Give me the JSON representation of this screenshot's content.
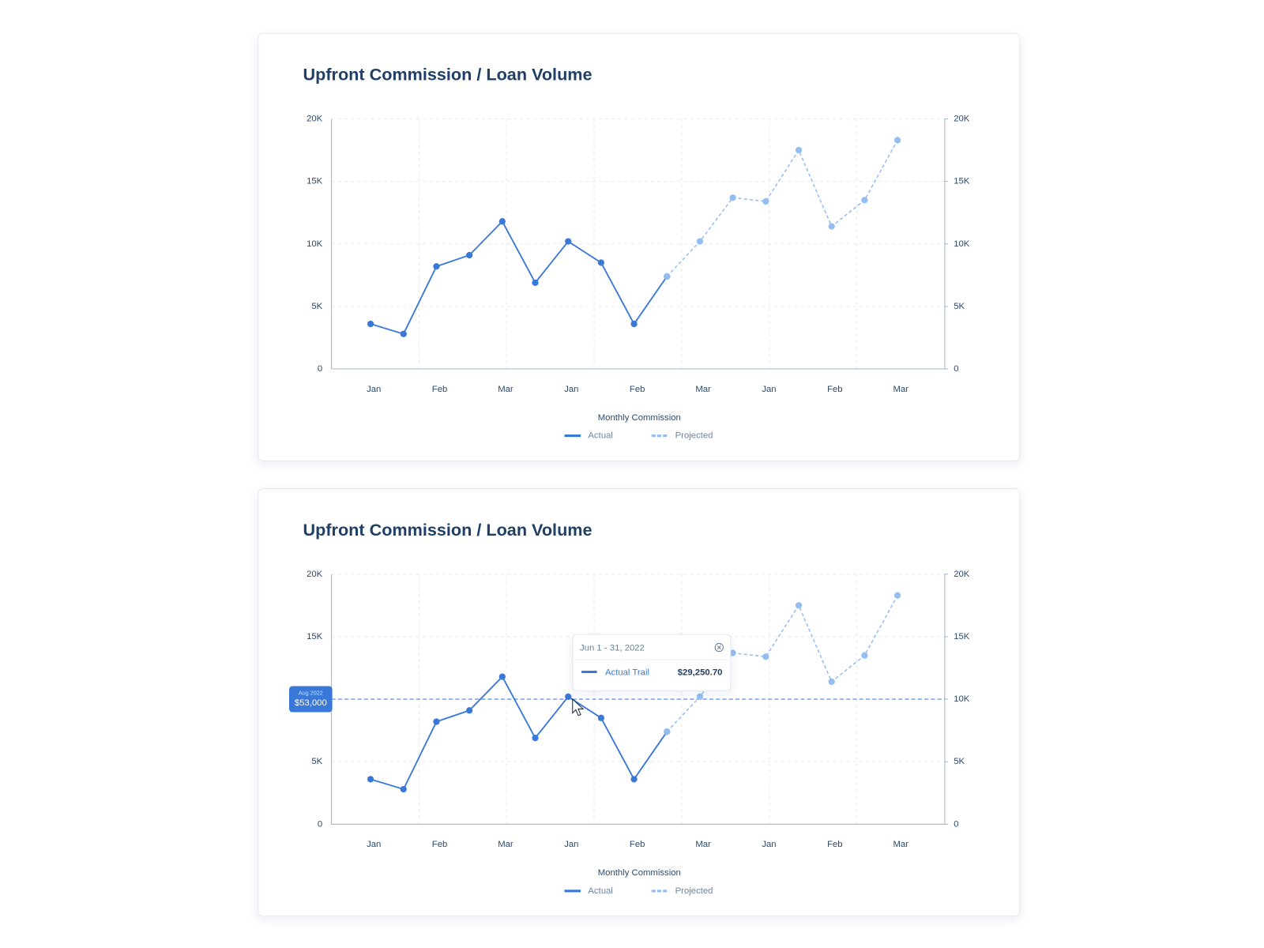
{
  "chart_data": [
    {
      "type": "line",
      "title": "Upfront Commission / Loan Volume",
      "categories": [
        "Jan",
        null,
        "Feb",
        null,
        "Mar",
        null,
        "Jan",
        null,
        "Feb",
        null,
        "Mar",
        null,
        "Jan",
        null,
        "Feb",
        null,
        "Mar"
      ],
      "series": [
        {
          "name": "Actual",
          "color": "#3a78d8",
          "values": [
            3600,
            2800,
            8200,
            9100,
            11800,
            6900,
            10200,
            8500,
            3600,
            7400,
            null,
            null,
            null,
            null,
            null,
            null,
            null
          ]
        },
        {
          "name": "Projected",
          "color": "#94bdf0",
          "values": [
            null,
            null,
            null,
            null,
            null,
            null,
            null,
            null,
            null,
            7400,
            10200,
            13700,
            13400,
            17500,
            11400,
            13500,
            18300
          ]
        }
      ],
      "ylim": [
        0,
        20000
      ],
      "yticks": [
        0,
        {
          "value": 5000,
          "label": "5K"
        },
        {
          "value": 10000,
          "label": "10K"
        },
        {
          "value": 15000,
          "label": "15K"
        },
        {
          "value": 20000,
          "label": "20K"
        }
      ],
      "y2lim": [
        0,
        20000
      ],
      "y2ticks": [
        0,
        {
          "value": 5000,
          "label": "5K"
        },
        {
          "value": 10000,
          "label": "10K"
        },
        {
          "value": 15000,
          "label": "15K"
        },
        {
          "value": 20000,
          "label": "20K"
        }
      ],
      "grid": true,
      "legend_title": "Monthly Commission",
      "legend": "bottom"
    },
    {
      "type": "line",
      "title": "Upfront Commission / Loan Volume",
      "categories": [
        "Jan",
        null,
        "Feb",
        null,
        "Mar",
        null,
        "Jan",
        null,
        "Feb",
        null,
        "Mar",
        null,
        "Jan",
        null,
        "Feb",
        null,
        "Mar"
      ],
      "series": [
        {
          "name": "Actual",
          "color": "#3a78d8",
          "values": [
            3600,
            2800,
            8200,
            9100,
            11800,
            6900,
            10200,
            8500,
            3600,
            7400,
            null,
            null,
            null,
            null,
            null,
            null,
            null
          ]
        },
        {
          "name": "Projected",
          "color": "#94bdf0",
          "values": [
            null,
            null,
            null,
            null,
            null,
            null,
            null,
            null,
            null,
            7400,
            10200,
            13700,
            13400,
            17500,
            11400,
            13500,
            18300
          ]
        }
      ],
      "ylim": [
        0,
        20000
      ],
      "yticks": [
        0,
        {
          "value": 5000,
          "label": "5K"
        },
        {
          "value": 10000,
          "label": "10K"
        },
        {
          "value": 15000,
          "label": "15K"
        },
        {
          "value": 20000,
          "label": "20K"
        }
      ],
      "y2lim": [
        0,
        20000
      ],
      "y2ticks": [
        0,
        {
          "value": 5000,
          "label": "5K"
        },
        {
          "value": 10000,
          "label": "10K"
        },
        {
          "value": 15000,
          "label": "15K"
        },
        {
          "value": 20000,
          "label": "20K"
        }
      ],
      "grid": true,
      "legend_title": "Monthly Commission",
      "legend": "bottom",
      "crosshair": {
        "y": 10000,
        "date": "Aug 2022",
        "label": "$53,000"
      },
      "tooltip": {
        "title": "Jun 1 - 31, 2022",
        "series_name": "Actual Trail",
        "value_label": "$29,250.70"
      }
    }
  ]
}
